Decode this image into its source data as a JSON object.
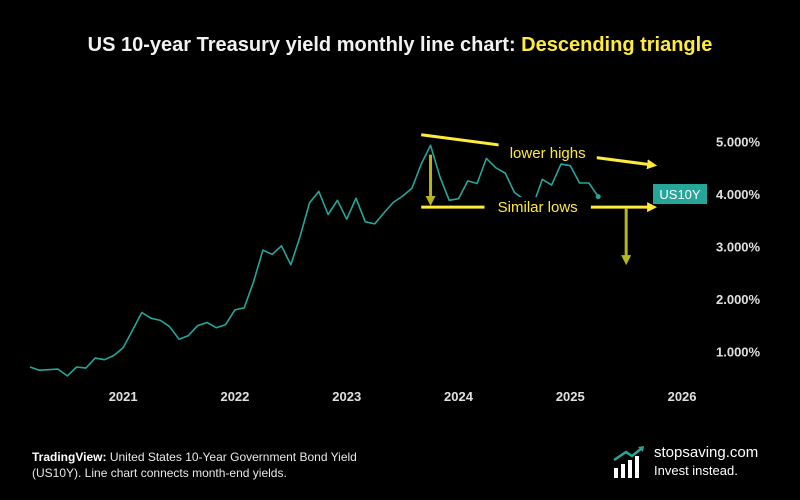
{
  "header": {
    "title_prefix": "US 10-year Treasury yield monthly line chart: ",
    "title_highlight": "Descending triangle"
  },
  "caption": {
    "source": "TradingView:",
    "text": "United States 10-Year Government Bond Yield (US10Y). Line chart connects month-end yields."
  },
  "brand": {
    "name": "stopsaving.com",
    "tagline": "Invest instead."
  },
  "colors": {
    "line": "#26a69a",
    "annotation": "#ffeb3b",
    "down_arrow": "#b5b51e",
    "badge": "#26a69a"
  },
  "chart_data": {
    "type": "line",
    "x_ticks": [
      "2021",
      "2022",
      "2023",
      "2024",
      "2025",
      "2026"
    ],
    "y_ticks": [
      "1.000%",
      "2.000%",
      "3.000%",
      "4.000%",
      "5.000%"
    ],
    "y_tick_values": [
      1,
      2,
      3,
      4,
      5
    ],
    "ylim": [
      0.3,
      5.45
    ],
    "xlim": [
      "2020-03",
      "2026-04"
    ],
    "grid": false,
    "series": [
      {
        "badge": "US10Y",
        "x": [
          "2020-03",
          "2020-04",
          "2020-05",
          "2020-06",
          "2020-07",
          "2020-08",
          "2020-09",
          "2020-10",
          "2020-11",
          "2020-12",
          "2021-01",
          "2021-02",
          "2021-03",
          "2021-04",
          "2021-05",
          "2021-06",
          "2021-07",
          "2021-08",
          "2021-09",
          "2021-10",
          "2021-11",
          "2021-12",
          "2022-01",
          "2022-02",
          "2022-03",
          "2022-04",
          "2022-05",
          "2022-06",
          "2022-07",
          "2022-08",
          "2022-09",
          "2022-10",
          "2022-11",
          "2022-12",
          "2023-01",
          "2023-02",
          "2023-03",
          "2023-04",
          "2023-05",
          "2023-06",
          "2023-07",
          "2023-08",
          "2023-09",
          "2023-10",
          "2023-11",
          "2023-12",
          "2024-01",
          "2024-02",
          "2024-03",
          "2024-04",
          "2024-05",
          "2024-06",
          "2024-07",
          "2024-08",
          "2024-09",
          "2024-10",
          "2024-11",
          "2024-12",
          "2025-01",
          "2025-02",
          "2025-03",
          "2025-04"
        ],
        "values": [
          0.7,
          0.64,
          0.65,
          0.66,
          0.53,
          0.7,
          0.68,
          0.87,
          0.84,
          0.92,
          1.07,
          1.4,
          1.74,
          1.63,
          1.59,
          1.47,
          1.23,
          1.3,
          1.49,
          1.55,
          1.45,
          1.51,
          1.79,
          1.83,
          2.33,
          2.93,
          2.85,
          3.01,
          2.65,
          3.19,
          3.83,
          4.05,
          3.61,
          3.88,
          3.52,
          3.92,
          3.47,
          3.43,
          3.64,
          3.84,
          3.96,
          4.11,
          4.57,
          4.93,
          4.33,
          3.88,
          3.91,
          4.25,
          4.2,
          4.68,
          4.5,
          4.4,
          4.03,
          3.9,
          3.78,
          4.28,
          4.17,
          4.57,
          4.54,
          4.21,
          4.21,
          3.95
        ]
      }
    ],
    "annotations": [
      {
        "label": "lower highs",
        "from": {
          "x": "2023-09",
          "y": 5.13
        },
        "to": {
          "x": "2025-10",
          "y": 4.55
        }
      },
      {
        "label": "Similar lows",
        "from": {
          "x": "2023-09",
          "y": 3.75
        },
        "to": {
          "x": "2025-10",
          "y": 3.75
        }
      }
    ],
    "down_arrows": [
      {
        "x": "2023-10",
        "y_from": 4.75,
        "y_to": 3.83
      },
      {
        "x": "2025-07",
        "y_from": 3.72,
        "y_to": 2.7
      }
    ]
  }
}
